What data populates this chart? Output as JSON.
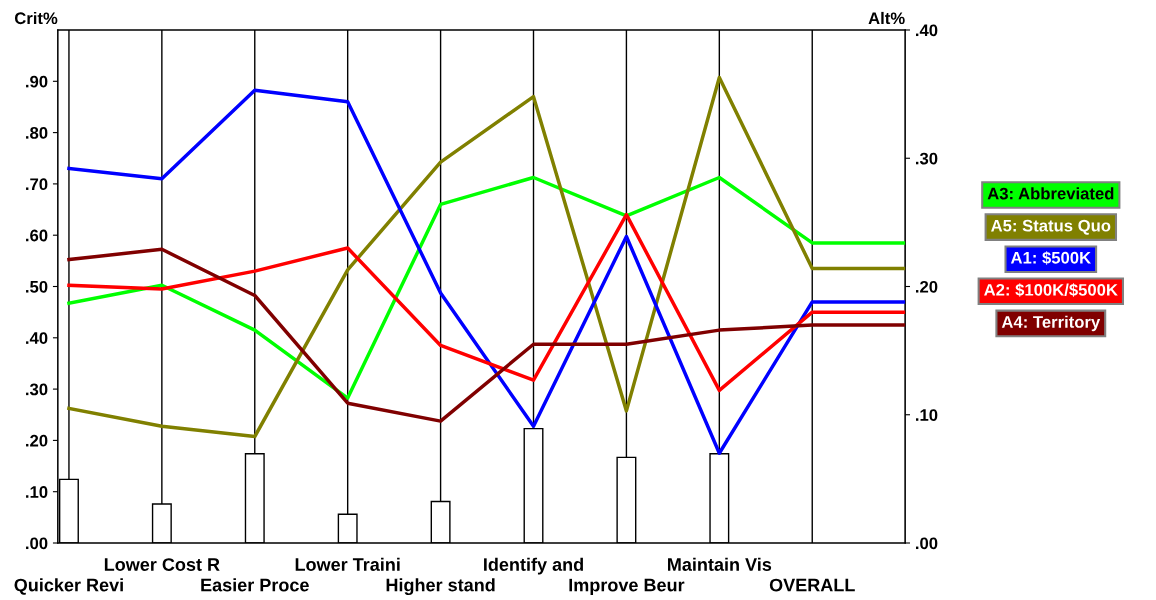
{
  "chart_data": {
    "type": "line",
    "ylabel": "Crit%",
    "y2label": "Alt%",
    "categories": [
      "Quicker Revi",
      "Lower Cost R",
      "Easier Proce",
      "Lower Traini",
      "Higher stand",
      "Identify and",
      "Improve Beur",
      "Maintain Vis",
      "OVERALL",
      null
    ],
    "ylim": [
      0,
      1.0
    ],
    "yticks": [
      {
        "value": 0,
        "label": ".00"
      },
      {
        "value": 0.1,
        "label": ".10"
      },
      {
        "value": 0.2,
        "label": ".20"
      },
      {
        "value": 0.3,
        "label": ".30"
      },
      {
        "value": 0.4,
        "label": ".40"
      },
      {
        "value": 0.5,
        "label": ".50"
      },
      {
        "value": 0.6,
        "label": ".60"
      },
      {
        "value": 0.7,
        "label": ".70"
      },
      {
        "value": 0.8,
        "label": ".80"
      },
      {
        "value": 0.9,
        "label": ".90"
      }
    ],
    "y2lim": [
      0,
      0.4
    ],
    "y2ticks": [
      {
        "value": 0,
        "label": ".00"
      },
      {
        "value": 0.1,
        "label": ".10"
      },
      {
        "value": 0.2,
        "label": ".20"
      },
      {
        "value": 0.3,
        "label": ".30"
      },
      {
        "value": 0.4,
        "label": ".40"
      }
    ],
    "grid": "x",
    "legend": "right",
    "marker": "none",
    "line_style": "solid",
    "series": [
      {
        "type": "bar",
        "axis": "y",
        "color": "#ffffff",
        "values": [
          0.124,
          0.076,
          0.174,
          0.056,
          0.081,
          0.223,
          0.167,
          0.174,
          null,
          null
        ]
      },
      {
        "name": "A3: Abbreviated",
        "axis": "y2",
        "color": "#00ff00",
        "values": [
          0.187,
          0.201,
          0.166,
          0.113,
          0.264,
          0.285,
          0.255,
          0.285,
          0.234,
          0.234
        ]
      },
      {
        "name": "A5: Status Quo",
        "axis": "y2",
        "color": "#808000",
        "values": [
          0.105,
          0.091,
          0.083,
          0.213,
          0.297,
          0.348,
          0.103,
          0.363,
          0.214,
          0.214
        ]
      },
      {
        "name": "A1: $500K",
        "axis": "y2",
        "color": "#0000ff",
        "values": [
          0.292,
          0.284,
          0.353,
          0.344,
          0.195,
          0.091,
          0.239,
          0.07,
          0.188,
          0.188
        ]
      },
      {
        "name": "A2: $100K/$500K",
        "axis": "y2",
        "color": "#ff0000",
        "values": [
          0.201,
          0.198,
          0.212,
          0.23,
          0.154,
          0.127,
          0.256,
          0.119,
          0.18,
          0.18
        ]
      },
      {
        "name": "A4: Territory",
        "axis": "y2",
        "color": "#800000",
        "values": [
          0.221,
          0.229,
          0.193,
          0.109,
          0.095,
          0.155,
          0.155,
          0.166,
          0.17,
          0.17
        ]
      }
    ]
  }
}
